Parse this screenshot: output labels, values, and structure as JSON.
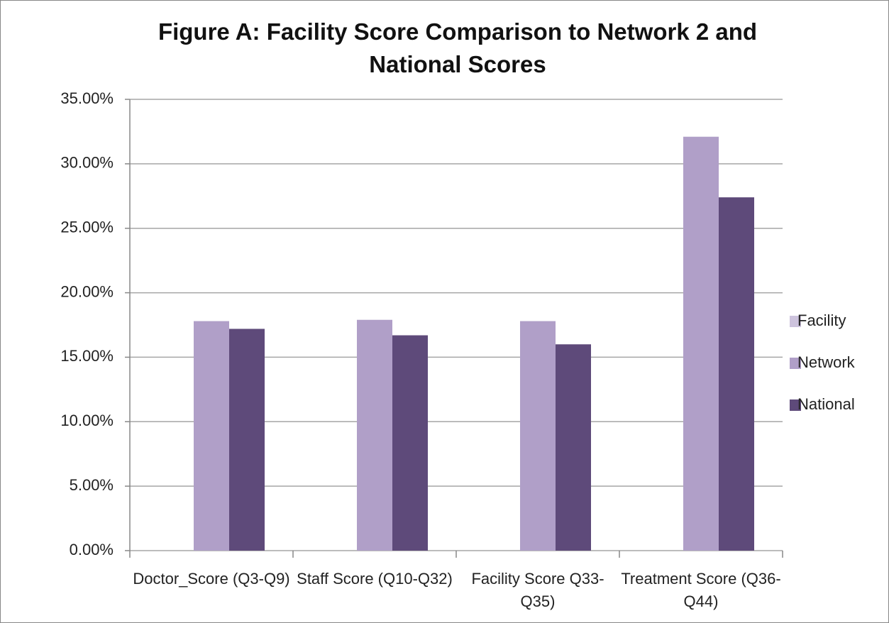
{
  "chart_data": {
    "type": "bar",
    "title": "Figure A: Facility Score Comparison to Network 2 and National Scores",
    "categories": [
      "Doctor_Score (Q3-Q9)",
      "Staff Score (Q10-Q32)",
      "Facility Score Q33-Q35)",
      "Treatment Score (Q36-Q44)"
    ],
    "series": [
      {
        "name": "Facility",
        "color": "#cdc3dd",
        "values": [
          null,
          null,
          null,
          null
        ]
      },
      {
        "name": "Network",
        "color": "#b09fc8",
        "values": [
          17.8,
          17.9,
          17.8,
          32.1
        ]
      },
      {
        "name": "National",
        "color": "#5e4a7a",
        "values": [
          17.2,
          16.7,
          16.0,
          27.4
        ]
      }
    ],
    "ylim": [
      0,
      35
    ],
    "yticks": [
      {
        "value": 0,
        "label": "0.00%"
      },
      {
        "value": 5,
        "label": "5.00%"
      },
      {
        "value": 10,
        "label": "10.00%"
      },
      {
        "value": 15,
        "label": "15.00%"
      },
      {
        "value": 20,
        "label": "20.00%"
      },
      {
        "value": 25,
        "label": "25.00%"
      },
      {
        "value": 30,
        "label": "30.00%"
      },
      {
        "value": 35,
        "label": "35.00%"
      }
    ],
    "grid": true,
    "legend": "right"
  }
}
